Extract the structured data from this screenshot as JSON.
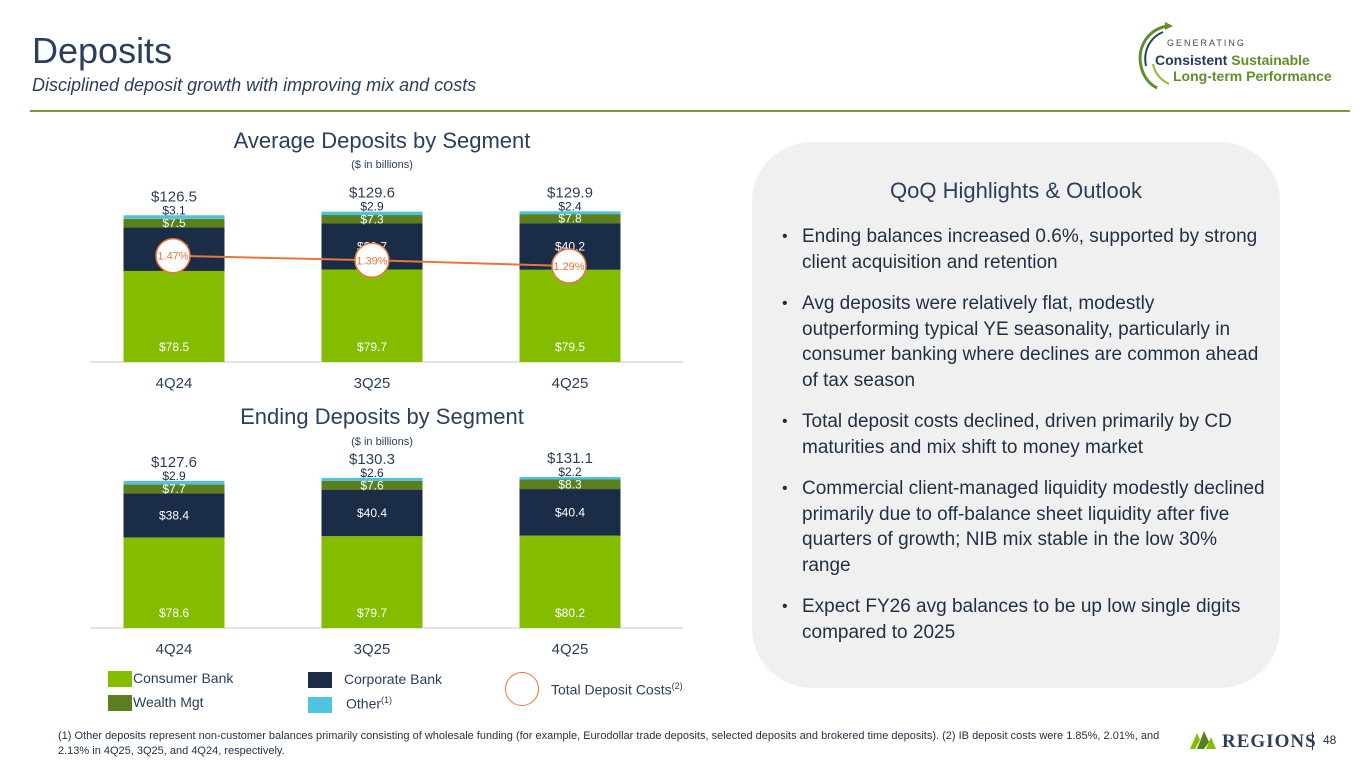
{
  "header": {
    "title": "Deposits",
    "subtitle": "Disciplined deposit growth with improving mix and costs"
  },
  "logo": {
    "line0": "GENERATING",
    "line1a": "Consistent",
    "line1b": "Sustainable",
    "line2": "Long-term Performance"
  },
  "avg": {
    "title": "Average Deposits by Segment",
    "sub": "($ in billions)"
  },
  "end": {
    "title": "Ending Deposits by Segment",
    "sub": "($ in billions)"
  },
  "chart_data": [
    {
      "type": "bar",
      "stacked": true,
      "title": "Average Deposits by Segment",
      "subtitle": "($ in billions)",
      "categories": [
        "4Q24",
        "3Q25",
        "4Q25"
      ],
      "totals": [
        "$126.5",
        "$129.6",
        "$129.9"
      ],
      "series": [
        {
          "name": "Consumer Bank",
          "values": [
            78.5,
            79.7,
            79.5
          ],
          "labels": [
            "$78.5",
            "$79.7",
            "$79.5"
          ],
          "color": "#84bd00"
        },
        {
          "name": "Corporate Bank",
          "values": [
            37.4,
            39.7,
            40.2
          ],
          "labels": [
            "$37.4",
            "$39.7",
            "$40.2"
          ],
          "color": "#1b2c47"
        },
        {
          "name": "Wealth Mgt",
          "values": [
            7.5,
            7.3,
            7.8
          ],
          "labels": [
            "$7.5",
            "$7.3",
            "$7.8"
          ],
          "color": "#5a7f1c"
        },
        {
          "name": "Other",
          "values": [
            3.1,
            2.9,
            2.4
          ],
          "labels": [
            "$3.1",
            "$2.9",
            "$2.4"
          ],
          "color": "#4ec3dd"
        }
      ],
      "line": {
        "name": "Total Deposit Costs",
        "values": [
          1.47,
          1.39,
          1.29
        ],
        "labels": [
          "1.47%",
          "1.39%",
          "1.29%"
        ],
        "color": "#e8763c"
      },
      "ylim": [
        0,
        140
      ]
    },
    {
      "type": "bar",
      "stacked": true,
      "title": "Ending Deposits by Segment",
      "subtitle": "($ in billions)",
      "categories": [
        "4Q24",
        "3Q25",
        "4Q25"
      ],
      "totals": [
        "$127.6",
        "$130.3",
        "$131.1"
      ],
      "series": [
        {
          "name": "Consumer Bank",
          "values": [
            78.6,
            79.7,
            80.2
          ],
          "labels": [
            "$78.6",
            "$79.7",
            "$80.2"
          ],
          "color": "#84bd00"
        },
        {
          "name": "Corporate Bank",
          "values": [
            38.4,
            40.4,
            40.4
          ],
          "labels": [
            "$38.4",
            "$40.4",
            "$40.4"
          ],
          "color": "#1b2c47"
        },
        {
          "name": "Wealth Mgt",
          "values": [
            7.7,
            7.6,
            8.3
          ],
          "labels": [
            "$7.7",
            "$7.6",
            "$8.3"
          ],
          "color": "#5a7f1c"
        },
        {
          "name": "Other",
          "values": [
            2.9,
            2.6,
            2.2
          ],
          "labels": [
            "$2.9",
            "$2.6",
            "$2.2"
          ],
          "color": "#4ec3dd"
        }
      ],
      "ylim": [
        0,
        140
      ]
    }
  ],
  "legend": {
    "consumer": "Consumer Bank",
    "wealth": "Wealth Mgt",
    "corporate": "Corporate Bank",
    "other": "Other",
    "other_sup": "(1)",
    "costs": "Total Deposit Costs",
    "costs_sup": "(2)"
  },
  "panel": {
    "title": "QoQ Highlights & Outlook",
    "bullets": [
      "Ending balances increased 0.6%, supported by strong client acquisition and retention",
      "Avg deposits were relatively flat, modestly outperforming typical YE seasonality, particularly in consumer banking where declines are common ahead of tax season",
      "Total deposit costs declined, driven primarily by CD maturities and mix shift to money market",
      "Commercial client-managed liquidity modestly declined primarily due to off-balance sheet liquidity after five quarters of growth; NIB mix stable in the low 30% range",
      "Expect FY26 avg balances to be up low single digits compared to 2025"
    ]
  },
  "footnote": "(1) Other deposits represent non-customer balances primarily consisting of wholesale funding (for example, Eurodollar trade deposits, selected deposits and brokered time deposits).  (2) IB deposit costs were 1.85%, 2.01%, and 2.13% in 4Q25, 3Q25, and 4Q24, respectively.",
  "brand": {
    "name": "REGIONS",
    "page": "48"
  }
}
